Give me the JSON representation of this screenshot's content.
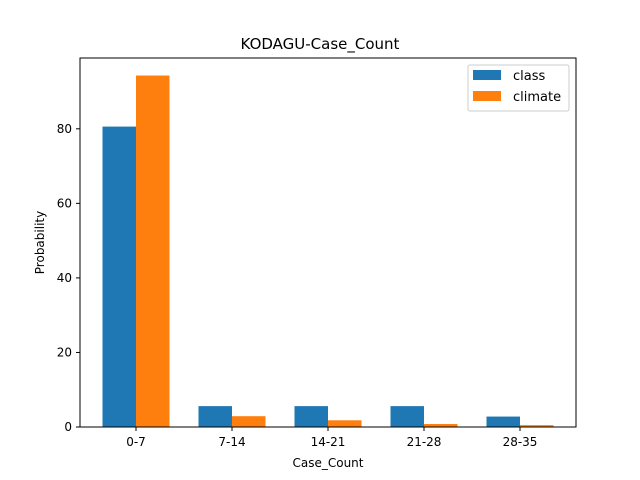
{
  "chart_data": {
    "type": "bar",
    "title": "KODAGU-Case_Count",
    "xlabel": "Case_Count",
    "ylabel": "Probability",
    "categories": [
      "0-7",
      "7-14",
      "14-21",
      "21-28",
      "28-35"
    ],
    "series": [
      {
        "name": "class",
        "color": "#1f77b4",
        "values": [
          80.6,
          5.6,
          5.6,
          5.6,
          2.8
        ]
      },
      {
        "name": "climate",
        "color": "#ff7f0e",
        "values": [
          94.3,
          2.9,
          1.8,
          0.8,
          0.5
        ]
      }
    ],
    "ylim": [
      0,
      99
    ],
    "yticks": [
      0,
      20,
      40,
      60,
      80
    ],
    "grid": false,
    "legend_position": "top-right"
  }
}
